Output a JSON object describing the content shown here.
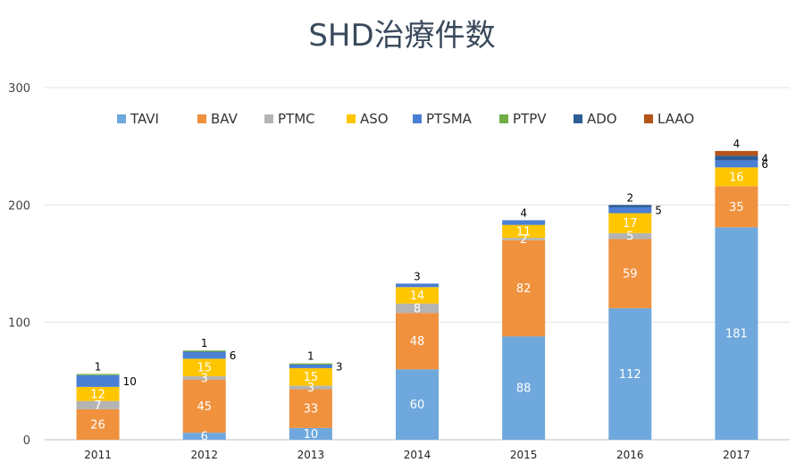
{
  "chart_data": {
    "type": "bar",
    "stacked": true,
    "title": "SHD治療件数",
    "categories": [
      "2011",
      "2012",
      "2013",
      "2014",
      "2015",
      "2016",
      "2017"
    ],
    "ylim": [
      0,
      300
    ],
    "yticks": [
      0,
      100,
      200,
      300
    ],
    "grid": true,
    "legend_position": "top",
    "series": [
      {
        "name": "TAVI",
        "color": "#6fa8dc",
        "values": [
          0,
          6,
          10,
          60,
          88,
          112,
          181
        ]
      },
      {
        "name": "BAV",
        "color": "#f0913e",
        "values": [
          26,
          45,
          33,
          48,
          82,
          59,
          35
        ]
      },
      {
        "name": "PTMC",
        "color": "#b4b4b4",
        "values": [
          7,
          3,
          3,
          8,
          2,
          5,
          0
        ]
      },
      {
        "name": "ASO",
        "color": "#ffc600",
        "values": [
          12,
          15,
          15,
          14,
          11,
          17,
          16
        ]
      },
      {
        "name": "PTSMA",
        "color": "#4a7fd4",
        "values": [
          10,
          6,
          3,
          3,
          4,
          5,
          6
        ]
      },
      {
        "name": "PTPV",
        "color": "#70ad47",
        "values": [
          1,
          1,
          1,
          0,
          0,
          0,
          0
        ]
      },
      {
        "name": "ADO",
        "color": "#2e5d96",
        "values": [
          0,
          0,
          0,
          0,
          0,
          2,
          4
        ]
      },
      {
        "name": "LAAO",
        "color": "#b5541a",
        "values": [
          0,
          0,
          0,
          0,
          0,
          0,
          4
        ]
      }
    ],
    "labels": [
      [
        {
          "text": "26",
          "s": 1,
          "pos": "in"
        },
        {
          "text": "7",
          "s": 2,
          "pos": "in"
        },
        {
          "text": "12",
          "s": 3,
          "pos": "in"
        },
        {
          "text": "10",
          "s": 4,
          "pos": "right"
        },
        {
          "text": "1",
          "s": 5,
          "pos": "above"
        }
      ],
      [
        {
          "text": "6",
          "s": 0,
          "pos": "in"
        },
        {
          "text": "45",
          "s": 1,
          "pos": "in"
        },
        {
          "text": "3",
          "s": 2,
          "pos": "in"
        },
        {
          "text": "15",
          "s": 3,
          "pos": "in"
        },
        {
          "text": "6",
          "s": 4,
          "pos": "right"
        },
        {
          "text": "1",
          "s": 5,
          "pos": "above"
        }
      ],
      [
        {
          "text": "10",
          "s": 0,
          "pos": "in"
        },
        {
          "text": "33",
          "s": 1,
          "pos": "in"
        },
        {
          "text": "3",
          "s": 2,
          "pos": "in"
        },
        {
          "text": "15",
          "s": 3,
          "pos": "in"
        },
        {
          "text": "3",
          "s": 4,
          "pos": "right"
        },
        {
          "text": "1",
          "s": 5,
          "pos": "above"
        }
      ],
      [
        {
          "text": "60",
          "s": 0,
          "pos": "in"
        },
        {
          "text": "48",
          "s": 1,
          "pos": "in"
        },
        {
          "text": "8",
          "s": 2,
          "pos": "in"
        },
        {
          "text": "14",
          "s": 3,
          "pos": "in"
        },
        {
          "text": "3",
          "s": 4,
          "pos": "above"
        }
      ],
      [
        {
          "text": "88",
          "s": 0,
          "pos": "in"
        },
        {
          "text": "82",
          "s": 1,
          "pos": "in"
        },
        {
          "text": "2",
          "s": 2,
          "pos": "in"
        },
        {
          "text": "11",
          "s": 3,
          "pos": "in"
        },
        {
          "text": "4",
          "s": 4,
          "pos": "above"
        }
      ],
      [
        {
          "text": "112",
          "s": 0,
          "pos": "in"
        },
        {
          "text": "59",
          "s": 1,
          "pos": "in"
        },
        {
          "text": "5",
          "s": 2,
          "pos": "in"
        },
        {
          "text": "17",
          "s": 3,
          "pos": "in"
        },
        {
          "text": "5",
          "s": 4,
          "pos": "right"
        },
        {
          "text": "2",
          "s": 6,
          "pos": "above"
        }
      ],
      [
        {
          "text": "181",
          "s": 0,
          "pos": "in"
        },
        {
          "text": "35",
          "s": 1,
          "pos": "in"
        },
        {
          "text": "16",
          "s": 3,
          "pos": "in"
        },
        {
          "text": "6",
          "s": 4,
          "pos": "right"
        },
        {
          "text": "4",
          "s": 6,
          "pos": "right"
        },
        {
          "text": "4",
          "s": 7,
          "pos": "above"
        }
      ]
    ]
  }
}
